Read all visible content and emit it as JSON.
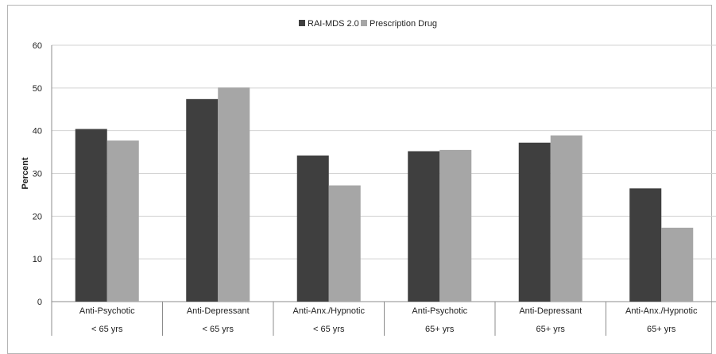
{
  "chart_data": {
    "type": "bar",
    "title": "",
    "xlabel": "",
    "ylabel": "Percent",
    "ylim": [
      0,
      60
    ],
    "yticks": [
      0,
      10,
      20,
      30,
      40,
      50,
      60
    ],
    "grid": true,
    "legend_position": "top",
    "categories": [
      {
        "line1": "Anti-Psychotic",
        "line2": "< 65 yrs"
      },
      {
        "line1": "Anti-Depressant",
        "line2": "< 65 yrs"
      },
      {
        "line1": "Anti-Anx./Hypnotic",
        "line2": "< 65 yrs"
      },
      {
        "line1": "Anti-Psychotic",
        "line2": "65+ yrs"
      },
      {
        "line1": "Anti-Depressant",
        "line2": "65+ yrs"
      },
      {
        "line1": "Anti-Anx./Hypnotic",
        "line2": "65+ yrs"
      }
    ],
    "series": [
      {
        "name": "RAI-MDS 2.0",
        "color": "#3f3f3f",
        "values": [
          40.4,
          47.4,
          34.2,
          35.2,
          37.2,
          26.5
        ]
      },
      {
        "name": "Prescription Drug",
        "color": "#a6a6a6",
        "values": [
          37.7,
          50.1,
          27.2,
          35.5,
          38.9,
          17.3
        ]
      }
    ]
  }
}
